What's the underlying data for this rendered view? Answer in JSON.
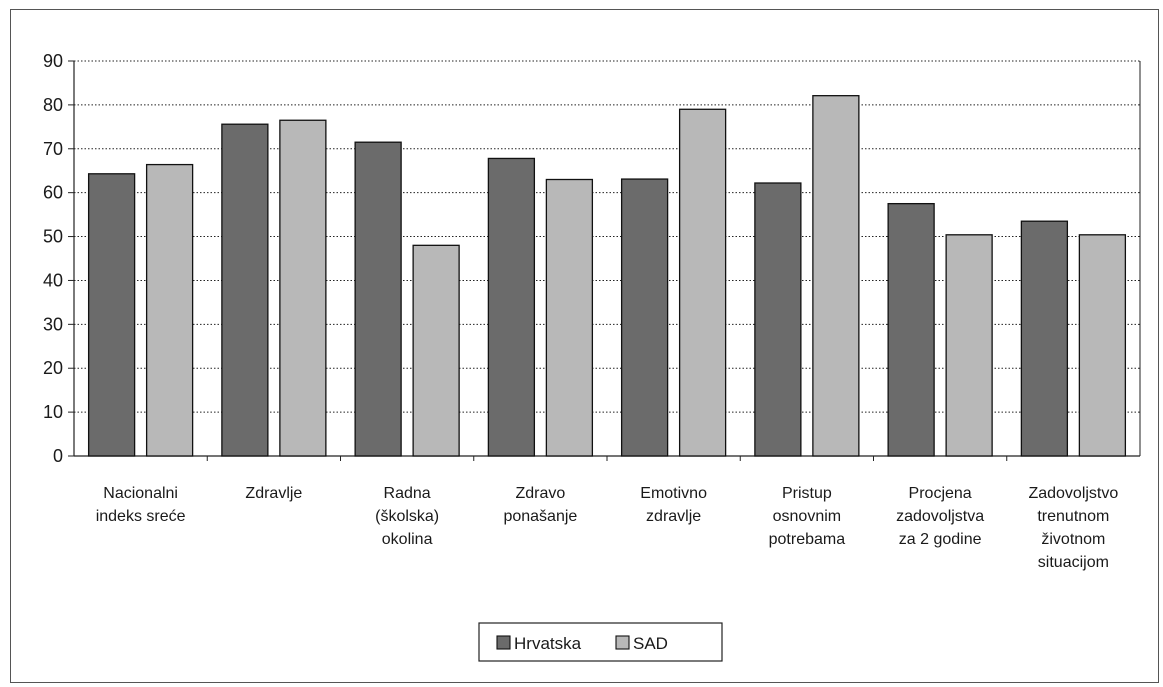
{
  "chart_data": {
    "type": "bar",
    "title": "",
    "xlabel": "",
    "ylabel": "",
    "ylim": [
      0,
      90
    ],
    "yticks": [
      0,
      10,
      20,
      30,
      40,
      50,
      60,
      70,
      80,
      90
    ],
    "grid": "horizontal dotted",
    "legend_position": "bottom-center",
    "categories": [
      [
        "Nacionalni",
        "indeks sreće"
      ],
      [
        "Zdravlje"
      ],
      [
        "Radna",
        "(školska)",
        "okolina"
      ],
      [
        "Zdravo",
        "ponašanje"
      ],
      [
        "Emotivno",
        "zdravlje"
      ],
      [
        "Pristup",
        "osnovnim",
        "potrebama"
      ],
      [
        "Procjena",
        "zadovoljstva",
        "za 2 godine"
      ],
      [
        "Zadovoljstvo",
        "trenutnom",
        "životnom",
        "situacijom"
      ]
    ],
    "series": [
      {
        "name": "Hrvatska",
        "color": "#6b6b6b",
        "values": [
          64.3,
          75.6,
          71.5,
          67.8,
          63.1,
          62.2,
          57.5,
          53.5
        ]
      },
      {
        "name": "SAD",
        "color": "#b8b8b8",
        "values": [
          66.4,
          76.5,
          48.0,
          63.0,
          79.0,
          82.1,
          50.4,
          50.4
        ]
      }
    ]
  }
}
